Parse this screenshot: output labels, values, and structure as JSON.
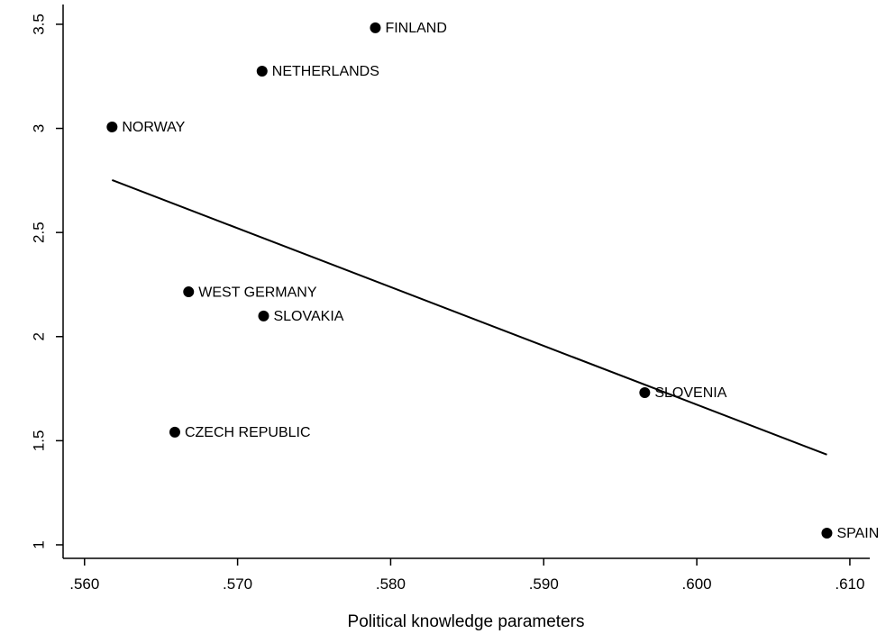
{
  "chart_data": {
    "type": "scatter",
    "xlabel": "Political knowledge parameters",
    "x": [
      0.579,
      0.5716,
      0.5618,
      0.5668,
      0.5717,
      0.5659,
      0.5966,
      0.6085
    ],
    "y": [
      3.483,
      3.275,
      3.007,
      2.215,
      2.099,
      1.541,
      1.731,
      1.056
    ],
    "point_labels": [
      "FINLAND",
      "NETHERLANDS",
      "NORWAY",
      "WEST GERMANY",
      "SLOVAKIA",
      "CZECH REPUBLIC",
      "SLOVENIA",
      "SPAIN"
    ],
    "color": "#000000",
    "fit": {
      "x": [
        0.5618,
        0.6085
      ],
      "y": [
        2.752,
        1.433
      ]
    },
    "xlim": [
      0.5586,
      0.6113
    ],
    "ylim": [
      0.935,
      3.595
    ],
    "xticks": [
      {
        "value": 0.56,
        "label": ".560"
      },
      {
        "value": 0.57,
        "label": ".570"
      },
      {
        "value": 0.58,
        "label": ".580"
      },
      {
        "value": 0.59,
        "label": ".590"
      },
      {
        "value": 0.6,
        "label": ".600"
      },
      {
        "value": 0.61,
        "label": ".610"
      }
    ],
    "yticks": [
      1,
      1.5,
      2,
      2.5,
      3,
      3.5
    ]
  }
}
